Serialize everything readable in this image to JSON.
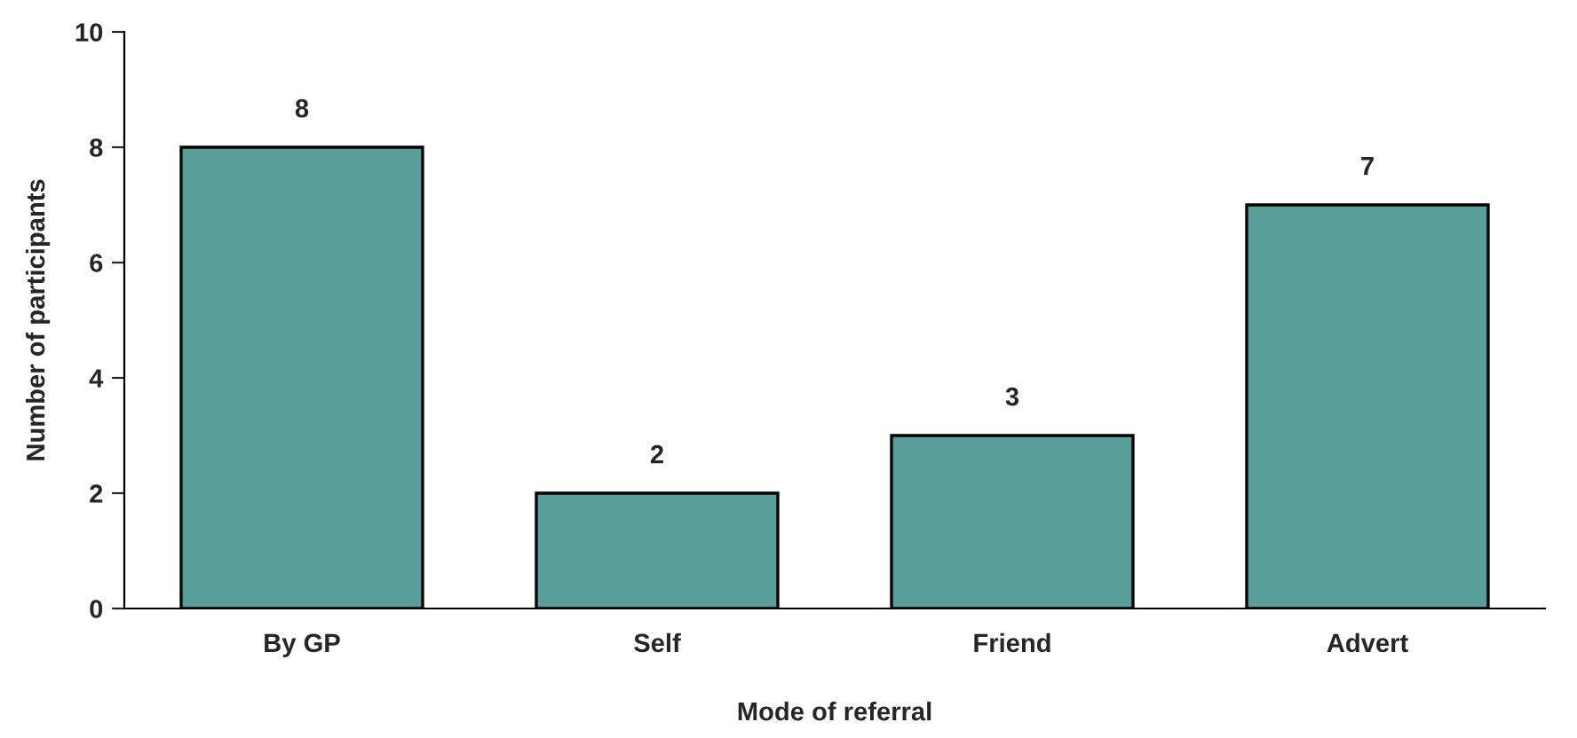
{
  "chart_data": {
    "type": "bar",
    "xlabel": "Mode of referral",
    "ylabel": "Number of participants",
    "categories": [
      "By GP",
      "Self",
      "Friend",
      "Advert"
    ],
    "values": [
      8,
      2,
      3,
      7
    ],
    "color": "#5a9e9a",
    "ylim": [
      0,
      10
    ],
    "yticks": [
      0,
      2,
      4,
      6,
      8,
      10
    ],
    "grid": false,
    "data_labels": true
  }
}
